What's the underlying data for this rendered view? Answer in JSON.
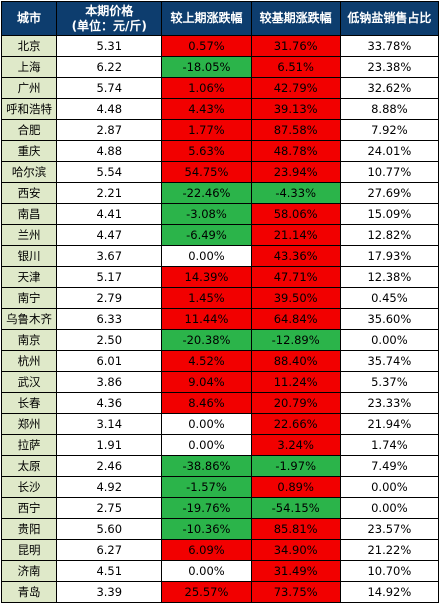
{
  "header": {
    "city": "城市",
    "price_line1": "本期价格",
    "price_line2": "(单位：元/斤)",
    "mom": "较上期涨跌幅",
    "yoy": "较基期涨跌幅",
    "share": "低钠盐销售占比"
  },
  "colors": {
    "header_bg": "#0d3d6e",
    "city_bg": "#dfe9c9",
    "increase_bg": "#f20000",
    "decrease_bg": "#2bb44a",
    "neutral_bg": "#ffffff"
  },
  "rows": [
    {
      "city": "北京",
      "price": "5.31",
      "mom": "0.57%",
      "yoy": "31.76%",
      "share": "33.78%"
    },
    {
      "city": "上海",
      "price": "6.22",
      "mom": "-18.05%",
      "yoy": "6.51%",
      "share": "23.38%"
    },
    {
      "city": "广州",
      "price": "5.74",
      "mom": "1.06%",
      "yoy": "42.79%",
      "share": "32.62%"
    },
    {
      "city": "呼和浩特",
      "price": "4.48",
      "mom": "4.43%",
      "yoy": "39.13%",
      "share": "8.88%"
    },
    {
      "city": "合肥",
      "price": "2.87",
      "mom": "1.77%",
      "yoy": "87.58%",
      "share": "7.92%"
    },
    {
      "city": "重庆",
      "price": "4.88",
      "mom": "5.63%",
      "yoy": "48.78%",
      "share": "24.01%"
    },
    {
      "city": "哈尔滨",
      "price": "5.54",
      "mom": "54.75%",
      "yoy": "23.94%",
      "share": "10.77%"
    },
    {
      "city": "西安",
      "price": "2.21",
      "mom": "-22.46%",
      "yoy": "-4.33%",
      "share": "27.69%"
    },
    {
      "city": "南昌",
      "price": "4.41",
      "mom": "-3.08%",
      "yoy": "58.06%",
      "share": "15.09%"
    },
    {
      "city": "兰州",
      "price": "4.47",
      "mom": "-6.49%",
      "yoy": "21.14%",
      "share": "12.82%"
    },
    {
      "city": "银川",
      "price": "3.67",
      "mom": "0.00%",
      "yoy": "43.36%",
      "share": "17.93%"
    },
    {
      "city": "天津",
      "price": "5.17",
      "mom": "14.39%",
      "yoy": "47.71%",
      "share": "12.38%"
    },
    {
      "city": "南宁",
      "price": "2.79",
      "mom": "1.45%",
      "yoy": "39.50%",
      "share": "0.45%"
    },
    {
      "city": "乌鲁木齐",
      "price": "6.33",
      "mom": "11.44%",
      "yoy": "64.84%",
      "share": "35.60%"
    },
    {
      "city": "南京",
      "price": "2.50",
      "mom": "-20.38%",
      "yoy": "-12.89%",
      "share": "0.00%"
    },
    {
      "city": "杭州",
      "price": "6.01",
      "mom": "4.52%",
      "yoy": "88.40%",
      "share": "35.74%"
    },
    {
      "city": "武汉",
      "price": "3.86",
      "mom": "9.04%",
      "yoy": "11.24%",
      "share": "5.37%"
    },
    {
      "city": "长春",
      "price": "4.36",
      "mom": "8.46%",
      "yoy": "20.79%",
      "share": "23.33%"
    },
    {
      "city": "郑州",
      "price": "3.14",
      "mom": "0.00%",
      "yoy": "22.66%",
      "share": "21.94%"
    },
    {
      "city": "拉萨",
      "price": "1.91",
      "mom": "0.00%",
      "yoy": "3.24%",
      "share": "1.74%"
    },
    {
      "city": "太原",
      "price": "2.46",
      "mom": "-38.86%",
      "yoy": "-1.97%",
      "share": "7.49%"
    },
    {
      "city": "长沙",
      "price": "4.92",
      "mom": "-1.57%",
      "yoy": "0.89%",
      "share": "0.00%"
    },
    {
      "city": "西宁",
      "price": "2.75",
      "mom": "-19.76%",
      "yoy": "-54.15%",
      "share": "0.00%"
    },
    {
      "city": "贵阳",
      "price": "5.60",
      "mom": "-10.36%",
      "yoy": "85.81%",
      "share": "23.57%"
    },
    {
      "city": "昆明",
      "price": "6.27",
      "mom": "6.09%",
      "yoy": "34.90%",
      "share": "21.22%"
    },
    {
      "city": "济南",
      "price": "4.51",
      "mom": "0.00%",
      "yoy": "31.49%",
      "share": "10.70%"
    },
    {
      "city": "青岛",
      "price": "3.39",
      "mom": "25.57%",
      "yoy": "73.75%",
      "share": "14.92%"
    }
  ]
}
